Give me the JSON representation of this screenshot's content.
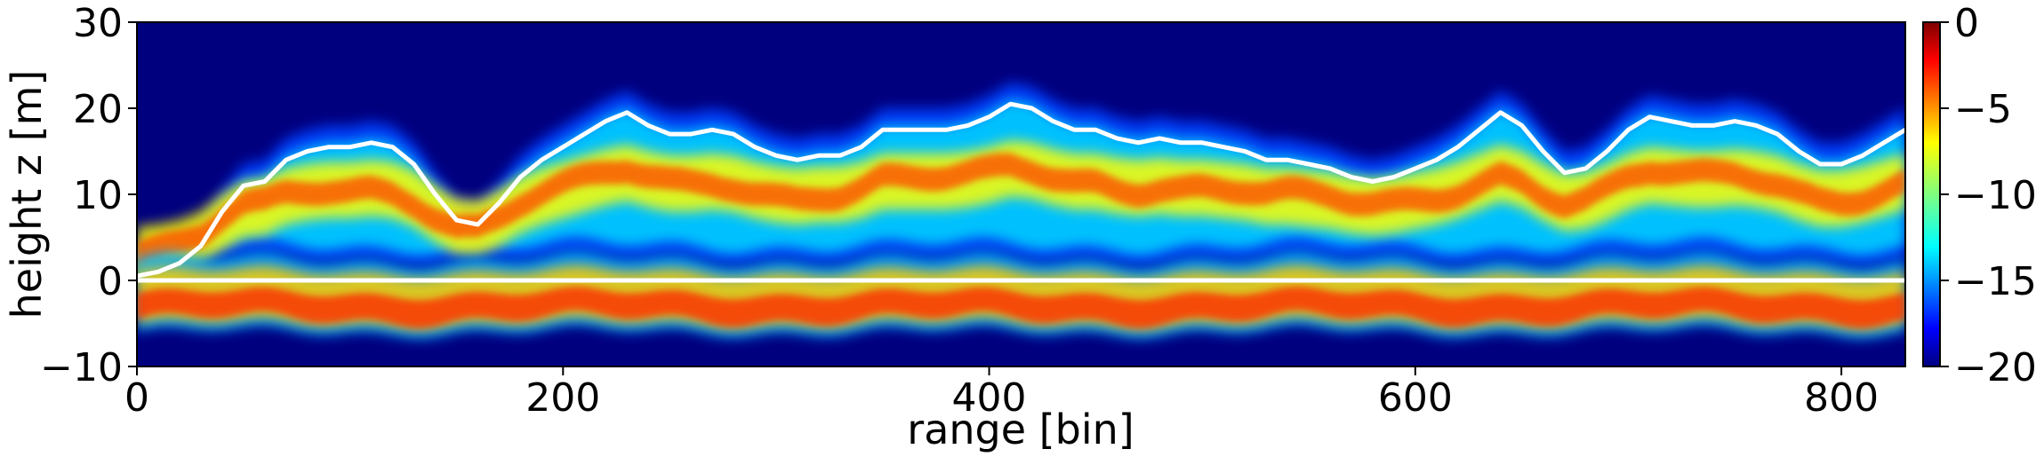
{
  "chart_data": {
    "type": "heatmap",
    "xlabel": "range [bin]",
    "ylabel": "height z [m]",
    "xlim": [
      0,
      830
    ],
    "ylim": [
      -10,
      30
    ],
    "x_ticks": [
      0,
      200,
      400,
      600,
      800
    ],
    "y_ticks": [
      -10,
      0,
      10,
      20,
      30
    ],
    "x_tick_labels": [
      "0",
      "200",
      "400",
      "600",
      "800"
    ],
    "y_tick_labels": [
      "−10",
      "0",
      "10",
      "20",
      "30"
    ],
    "colorbar": {
      "colormap": "jet",
      "range": [
        -20,
        0
      ],
      "ticks": [
        0,
        -5,
        -10,
        -15,
        -20
      ],
      "tick_labels": [
        "0",
        "−5",
        "−10",
        "−15",
        "−20"
      ]
    },
    "series": [
      {
        "type": "line",
        "color": "#ffffff",
        "points": [
          [
            0,
            0.5
          ],
          [
            10,
            1
          ],
          [
            20,
            2
          ],
          [
            30,
            4
          ],
          [
            40,
            8
          ],
          [
            50,
            11
          ],
          [
            60,
            11.5
          ],
          [
            70,
            14
          ],
          [
            80,
            15
          ],
          [
            90,
            15.5
          ],
          [
            100,
            15.5
          ],
          [
            110,
            16
          ],
          [
            120,
            15.5
          ],
          [
            130,
            13.5
          ],
          [
            140,
            10
          ],
          [
            150,
            7
          ],
          [
            160,
            6.5
          ],
          [
            170,
            9
          ],
          [
            180,
            12
          ],
          [
            190,
            14
          ],
          [
            200,
            15.5
          ],
          [
            210,
            17
          ],
          [
            220,
            18.5
          ],
          [
            230,
            19.5
          ],
          [
            240,
            18
          ],
          [
            250,
            17
          ],
          [
            260,
            17
          ],
          [
            270,
            17.5
          ],
          [
            280,
            17
          ],
          [
            290,
            15.5
          ],
          [
            300,
            14.5
          ],
          [
            310,
            14
          ],
          [
            320,
            14.5
          ],
          [
            330,
            14.5
          ],
          [
            340,
            15.5
          ],
          [
            350,
            17.5
          ],
          [
            360,
            17.5
          ],
          [
            370,
            17.5
          ],
          [
            380,
            17.5
          ],
          [
            390,
            18
          ],
          [
            400,
            19
          ],
          [
            410,
            20.5
          ],
          [
            420,
            20
          ],
          [
            430,
            18.5
          ],
          [
            440,
            17.5
          ],
          [
            450,
            17.5
          ],
          [
            460,
            16.5
          ],
          [
            470,
            16
          ],
          [
            480,
            16.5
          ],
          [
            490,
            16
          ],
          [
            500,
            16
          ],
          [
            510,
            15.5
          ],
          [
            520,
            15
          ],
          [
            530,
            14
          ],
          [
            540,
            14
          ],
          [
            550,
            13.5
          ],
          [
            560,
            13
          ],
          [
            570,
            12
          ],
          [
            580,
            11.5
          ],
          [
            590,
            12
          ],
          [
            600,
            13
          ],
          [
            610,
            14
          ],
          [
            620,
            15.5
          ],
          [
            630,
            17.5
          ],
          [
            640,
            19.5
          ],
          [
            650,
            18
          ],
          [
            660,
            15
          ],
          [
            670,
            12.5
          ],
          [
            680,
            13
          ],
          [
            690,
            15
          ],
          [
            700,
            17.5
          ],
          [
            710,
            19
          ],
          [
            720,
            18.5
          ],
          [
            730,
            18
          ],
          [
            740,
            18
          ],
          [
            750,
            18.5
          ],
          [
            760,
            18
          ],
          [
            770,
            17
          ],
          [
            780,
            15
          ],
          [
            790,
            13.5
          ],
          [
            800,
            13.5
          ],
          [
            810,
            14.5
          ],
          [
            820,
            16
          ],
          [
            830,
            17.5
          ]
        ]
      },
      {
        "type": "line",
        "color": "#ffffff",
        "points": [
          [
            0,
            0
          ],
          [
            830,
            0
          ]
        ]
      }
    ],
    "grid": false,
    "legend": "none"
  }
}
